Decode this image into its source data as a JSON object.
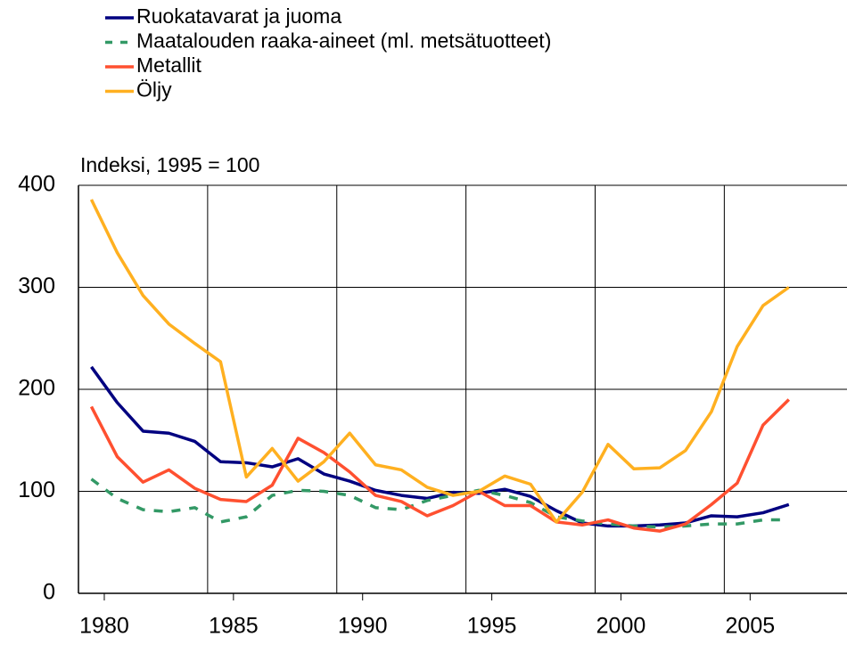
{
  "chart_data": {
    "type": "line",
    "ylabel": "Indeksi, 1995 = 100",
    "x": [
      1979,
      1980,
      1981,
      1982,
      1983,
      1984,
      1985,
      1986,
      1987,
      1988,
      1989,
      1990,
      1991,
      1992,
      1993,
      1994,
      1995,
      1996,
      1997,
      1998,
      1999,
      2000,
      2001,
      2002,
      2003,
      2004,
      2005,
      2006
    ],
    "series": [
      {
        "name": "Ruokatavarat ja juoma",
        "color": "#000080",
        "dash": false,
        "values": [
          222,
          187,
          159,
          157,
          149,
          129,
          128,
          124,
          132,
          117,
          110,
          101,
          96,
          93,
          99,
          98,
          102,
          95,
          81,
          69,
          66,
          66,
          67,
          69,
          76,
          75,
          79,
          87
        ]
      },
      {
        "name": "Maatalouden raaka-aineet (ml. metsätuotteet)",
        "color": "#339966",
        "dash": true,
        "values": [
          112,
          93,
          82,
          80,
          84,
          70,
          75,
          96,
          101,
          100,
          96,
          84,
          82,
          91,
          96,
          101,
          96,
          89,
          75,
          71,
          68,
          66,
          65,
          66,
          68,
          68,
          72,
          72
        ]
      },
      {
        "name": "Metallit",
        "color": "#ff5030",
        "dash": false,
        "values": [
          183,
          134,
          109,
          121,
          103,
          92,
          90,
          106,
          152,
          138,
          119,
          96,
          90,
          76,
          86,
          100,
          86,
          86,
          70,
          67,
          72,
          64,
          61,
          68,
          87,
          108,
          165,
          190
        ]
      },
      {
        "name": "Öljy",
        "color": "#ffb020",
        "dash": false,
        "values": [
          386,
          334,
          292,
          264,
          245,
          227,
          114,
          142,
          110,
          129,
          157,
          126,
          121,
          104,
          96,
          100,
          115,
          107,
          70,
          99,
          146,
          122,
          123,
          140,
          178,
          242,
          282,
          300
        ]
      }
    ],
    "xlim": [
      1978.5,
      2008.25
    ],
    "xticks": [
      {
        "value": 1979.5,
        "label": "1980"
      },
      {
        "value": 1984.5,
        "label": "1985"
      },
      {
        "value": 1989.5,
        "label": "1990"
      },
      {
        "value": 1994.5,
        "label": "1995"
      },
      {
        "value": 1999.5,
        "label": "2000"
      },
      {
        "value": 2004.5,
        "label": "2005"
      }
    ],
    "xgrid": [
      1983.5,
      1988.5,
      1993.5,
      1998.5,
      2003.5
    ],
    "ylim": [
      0,
      400
    ],
    "yticks": [
      0,
      100,
      200,
      300,
      400
    ],
    "grid": true
  }
}
